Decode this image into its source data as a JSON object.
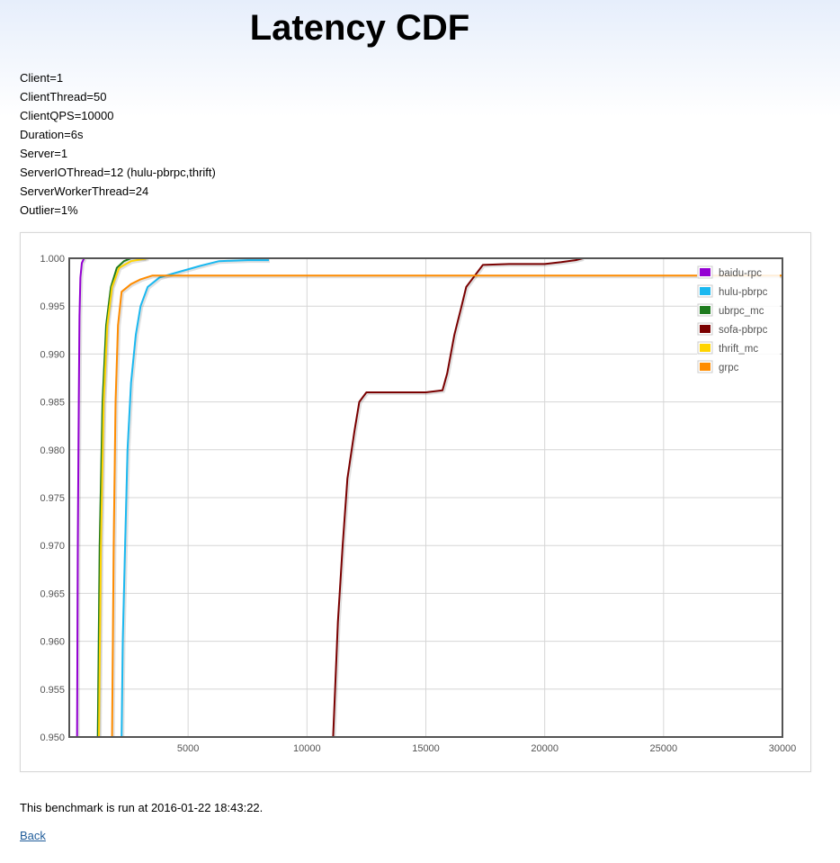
{
  "page": {
    "title": "Latency CDF",
    "params": [
      "Client=1",
      "ClientThread=50",
      "ClientQPS=10000",
      "Duration=6s",
      "Server=1",
      "ServerIOThread=12 (hulu-pbrpc,thrift)",
      "ServerWorkerThread=24",
      "Outlier=1%"
    ],
    "run_info": "This benchmark is run at 2016-01-22 18:43:22.",
    "back_label": "Back"
  },
  "chart_data": {
    "type": "line",
    "title": "",
    "xlabel": "",
    "ylabel": "",
    "xlim": [
      0,
      30000
    ],
    "ylim": [
      0.95,
      1.0
    ],
    "x_ticks": [
      5000,
      10000,
      15000,
      20000,
      25000,
      30000
    ],
    "y_ticks": [
      "0.950",
      "0.955",
      "0.960",
      "0.965",
      "0.970",
      "0.975",
      "0.980",
      "0.985",
      "0.990",
      "0.995",
      "1.000"
    ],
    "grid": true,
    "legend_position": "top-right",
    "series": [
      {
        "name": "baidu-rpc",
        "color": "#9400d3",
        "points": [
          [
            330,
            0.95
          ],
          [
            360,
            0.97
          ],
          [
            400,
            0.985
          ],
          [
            430,
            0.994
          ],
          [
            470,
            0.998
          ],
          [
            530,
            0.9995
          ],
          [
            620,
            1.0
          ]
        ]
      },
      {
        "name": "hulu-pbrpc",
        "color": "#1ab8f0",
        "points": [
          [
            2200,
            0.95
          ],
          [
            2250,
            0.96
          ],
          [
            2350,
            0.97
          ],
          [
            2450,
            0.98
          ],
          [
            2600,
            0.987
          ],
          [
            2800,
            0.992
          ],
          [
            3000,
            0.995
          ],
          [
            3300,
            0.997
          ],
          [
            3800,
            0.998
          ],
          [
            4500,
            0.9985
          ],
          [
            5500,
            0.9992
          ],
          [
            6300,
            0.9997
          ],
          [
            7500,
            0.9998
          ],
          [
            8400,
            0.9998
          ]
        ]
      },
      {
        "name": "ubrpc_mc",
        "color": "#1e7b1e",
        "points": [
          [
            1200,
            0.95
          ],
          [
            1280,
            0.97
          ],
          [
            1400,
            0.985
          ],
          [
            1550,
            0.993
          ],
          [
            1750,
            0.997
          ],
          [
            2000,
            0.999
          ],
          [
            2300,
            0.9997
          ],
          [
            2600,
            1.0
          ],
          [
            3200,
            1.0
          ]
        ]
      },
      {
        "name": "sofa-pbrpc",
        "color": "#7a0000",
        "points": [
          [
            11100,
            0.95
          ],
          [
            11300,
            0.962
          ],
          [
            11500,
            0.97
          ],
          [
            11700,
            0.977
          ],
          [
            12000,
            0.982
          ],
          [
            12200,
            0.985
          ],
          [
            12500,
            0.986
          ],
          [
            13500,
            0.986
          ],
          [
            15000,
            0.986
          ],
          [
            15700,
            0.9862
          ],
          [
            15900,
            0.988
          ],
          [
            16200,
            0.992
          ],
          [
            16500,
            0.995
          ],
          [
            16700,
            0.997
          ],
          [
            17000,
            0.998
          ],
          [
            17400,
            0.9993
          ],
          [
            18500,
            0.9994
          ],
          [
            20000,
            0.9994
          ],
          [
            20700,
            0.9996
          ],
          [
            21300,
            0.9998
          ],
          [
            21600,
            1.0
          ]
        ]
      },
      {
        "name": "thrift_mc",
        "color": "#ffd400",
        "points": [
          [
            1250,
            0.95
          ],
          [
            1330,
            0.97
          ],
          [
            1450,
            0.985
          ],
          [
            1600,
            0.993
          ],
          [
            1800,
            0.997
          ],
          [
            2100,
            0.999
          ],
          [
            2600,
            0.9997
          ],
          [
            3300,
            1.0
          ]
        ]
      },
      {
        "name": "grpc",
        "color": "#ff8c00",
        "points": [
          [
            1800,
            0.95
          ],
          [
            1870,
            0.97
          ],
          [
            1950,
            0.985
          ],
          [
            2050,
            0.993
          ],
          [
            2200,
            0.9965
          ],
          [
            2600,
            0.9973
          ],
          [
            3000,
            0.9978
          ],
          [
            3500,
            0.9982
          ],
          [
            30000,
            0.9982
          ]
        ]
      }
    ]
  }
}
